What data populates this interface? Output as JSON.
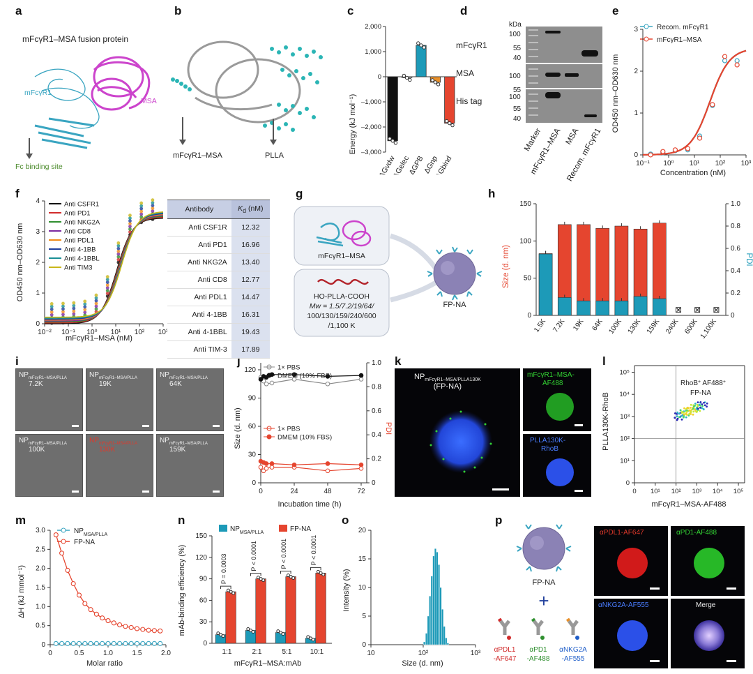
{
  "panel_labels": {
    "a": "a",
    "b": "b",
    "c": "c",
    "d": "d",
    "e": "e",
    "f": "f",
    "g": "g",
    "h": "h",
    "i": "i",
    "j": "j",
    "k": "k",
    "l": "l",
    "m": "m",
    "n": "n",
    "o": "o",
    "p": "p"
  },
  "a": {
    "title": "mFcγR1–MSA fusion protein",
    "left_label": "mFcγR1",
    "right_label": "MSA",
    "site": "Fc binding site"
  },
  "b": {
    "label1": "mFcγR1–MSA",
    "label2": "PLLA"
  },
  "c": {
    "chart_data": {
      "type": "bar",
      "categories": [
        "ΔGvdw",
        "ΔGelec",
        "ΔGPB",
        "ΔGnp",
        "ΔGbind"
      ],
      "values": [
        -2550,
        -40,
        1250,
        -220,
        -1850
      ],
      "colors": [
        "#111111",
        "#ffffff",
        "#1d9ab8",
        "#e8902a",
        "#e5452f"
      ],
      "ylabel": "Energy (kJ mol⁻¹)",
      "ylim": [
        -3000,
        2000
      ],
      "yticks": [
        2000,
        1000,
        0,
        -1000,
        -2000,
        -3000
      ],
      "ytick_labels": [
        "2,000",
        "1,000",
        "0",
        "–1,000",
        "–2,000",
        "–3,000"
      ]
    }
  },
  "d": {
    "unit": "kDa",
    "rows": [
      "mFcγR1",
      "MSA",
      "His tag"
    ],
    "mw": [
      "100",
      "55",
      "40"
    ],
    "lanes": [
      "Marker",
      "mFcγR1–MSA",
      "MSA",
      "Recom. mFcγR1"
    ]
  },
  "e": {
    "chart_data": {
      "type": "line",
      "series": [
        {
          "name": "Recom. mFcγR1",
          "color": "#3aa5c1",
          "x": [
            0.2,
            0.6,
            1.8,
            5.5,
            16,
            50,
            150,
            450
          ],
          "y": [
            0.02,
            0.05,
            0.1,
            0.12,
            0.45,
            1.18,
            2.25,
            2.25
          ]
        },
        {
          "name": "mFcγR1–MSA",
          "color": "#e5452f",
          "x": [
            0.2,
            0.6,
            1.8,
            5.5,
            16,
            50,
            150,
            450
          ],
          "y": [
            0.0,
            0.08,
            0.12,
            0.15,
            0.4,
            1.2,
            2.35,
            2.15
          ]
        }
      ],
      "xlabel": "Concentration (nM)",
      "ylabel": "OD450 nm–OD630 nm",
      "xlim": [
        0.1,
        1000
      ],
      "ylim": [
        0,
        3
      ],
      "xticks": [
        "10⁻¹",
        "10⁰",
        "10¹",
        "10²",
        "10³"
      ],
      "yticks": [
        0,
        1,
        2,
        3
      ]
    }
  },
  "f": {
    "chart_data": {
      "type": "line",
      "series": [
        {
          "name": "Anti CSFR1",
          "color": "#111111"
        },
        {
          "name": "Anti PD1",
          "color": "#d12b2b"
        },
        {
          "name": "Anti NKG2A",
          "color": "#2f8f2f"
        },
        {
          "name": "Anti CD8",
          "color": "#7b2aa0"
        },
        {
          "name": "Anti PDL1",
          "color": "#f08c1a"
        },
        {
          "name": "Anti 4-1BB",
          "color": "#1f3e9c"
        },
        {
          "name": "Anti 4-1BBL",
          "color": "#1a8f95"
        },
        {
          "name": "Anti TIM3",
          "color": "#c9b71a"
        }
      ],
      "xlabel": "mFcγR1–MSA (nM)",
      "ylabel": "OD450 nm–OD630 nm",
      "xlim": [
        0.01,
        1000
      ],
      "ylim": [
        0,
        4
      ],
      "xticks": [
        "10⁻²",
        "10⁻¹",
        "10⁰",
        "10¹",
        "10²",
        "10³"
      ],
      "yticks": [
        0,
        1,
        2,
        3,
        4
      ],
      "x": [
        0.02,
        0.06,
        0.17,
        0.5,
        1.5,
        4.5,
        13,
        40,
        120,
        360
      ],
      "y": [
        0.02,
        0.03,
        0.05,
        0.1,
        0.3,
        0.9,
        2.0,
        2.9,
        3.3,
        3.4
      ]
    },
    "table": {
      "col1": "Antibody",
      "col2_k": "K",
      "col2_d": "d",
      "col2_unit": " (nM)",
      "rows": [
        {
          "ab": "Anti CSF1R",
          "kd": "12.32"
        },
        {
          "ab": "Anti PD1",
          "kd": "16.96"
        },
        {
          "ab": "Anti NKG2A",
          "kd": "13.40"
        },
        {
          "ab": "Anti CD8",
          "kd": "12.77"
        },
        {
          "ab": "Anti PDL1",
          "kd": "14.47"
        },
        {
          "ab": "Anti 4-1BB",
          "kd": "16.31"
        },
        {
          "ab": "Anti 4-1BBL",
          "kd": "19.43"
        },
        {
          "ab": "Anti TIM-3",
          "kd": "17.89"
        }
      ]
    }
  },
  "g": {
    "protein": "mFcγR1–MSA",
    "polymer": "HO-PLLA-COOH",
    "mw_line1": "Mw = 1.5/7.2/19/64/",
    "mw_line2": "100/130/159/240/600",
    "mw_line3": "/1,100 K",
    "product": "FP-NA"
  },
  "h": {
    "chart_data": {
      "type": "bar",
      "categories": [
        "1.5K",
        "7.2K",
        "19K",
        "64K",
        "100K",
        "130K",
        "159K",
        "240K",
        "600K",
        "1,100K"
      ],
      "size": [
        83,
        122,
        122,
        117,
        120,
        116,
        124,
        null,
        null,
        null
      ],
      "pdi": [
        0.55,
        0.16,
        0.13,
        0.13,
        0.13,
        0.17,
        0.15,
        null,
        null,
        null
      ],
      "ylabel_left": "Size (d. nm)",
      "ylabel_right": "PDI",
      "ylim_left": [
        0,
        150
      ],
      "ylim_right": [
        0,
        1.0
      ],
      "yticks_left": [
        0,
        50,
        100,
        150
      ],
      "yticks_right": [
        "0",
        "0.2",
        "0.4",
        "0.6",
        "0.8",
        "1.0"
      ],
      "size_color": "#e5452f",
      "pdi_color": "#1d9ab8",
      "missing_mark": "⊠"
    }
  },
  "i": {
    "tiles": [
      {
        "main": "NP",
        "sub": "mFcγR1–MSA/PLLA",
        "val": "7.2K"
      },
      {
        "main": "NP",
        "sub": "mFcγR1–MSA/PLLA",
        "val": "19K"
      },
      {
        "main": "NP",
        "sub": "mFcγR1–MSA/PLLA",
        "val": "64K"
      },
      {
        "main": "NP",
        "sub": "mFcγR1–MSA/PLLA",
        "val": "100K"
      },
      {
        "main": "NP",
        "sub": "mFcγR1–MSA/PLLA",
        "val": "130K"
      },
      {
        "main": "NP",
        "sub": "mFcγR1–MSA/PLLA",
        "val": "159K"
      }
    ]
  },
  "j": {
    "chart_data": {
      "type": "line",
      "x": [
        0,
        2,
        4,
        8,
        24,
        48,
        72
      ],
      "series": [
        {
          "name": "1× PBS",
          "axis": "size",
          "color": "#888888",
          "filled": false,
          "values": [
            112,
            108,
            105,
            106,
            110,
            105,
            110
          ]
        },
        {
          "name": "DMEM (10% FBS)",
          "axis": "size",
          "color": "#111111",
          "filled": true,
          "values": [
            110,
            113,
            112,
            115,
            115,
            113,
            114
          ]
        },
        {
          "name": "1× PBS",
          "axis": "pdi",
          "color": "#e5452f",
          "filled": false,
          "values": [
            0.13,
            0.1,
            0.12,
            0.13,
            0.13,
            0.1,
            0.12
          ]
        },
        {
          "name": "DMEM (10% FBS)",
          "axis": "pdi",
          "color": "#e5452f",
          "filled": true,
          "values": [
            0.18,
            0.17,
            0.16,
            0.16,
            0.15,
            0.16,
            0.15
          ]
        }
      ],
      "xlabel": "Incubation time (h)",
      "ylabel_left": "Size (d. nm)",
      "ylabel_right": "PDI",
      "xticks": [
        0,
        24,
        48,
        72
      ],
      "yticks_left": [
        0,
        30,
        60,
        90,
        120
      ],
      "yticks_right": [
        "0",
        "0.2",
        "0.4",
        "0.6",
        "0.8",
        "1.0"
      ]
    }
  },
  "k": {
    "main": "NP",
    "sub": "mFcγR1–MSA/PLLA130K",
    "paren": "(FP-NA)",
    "tile1a": "mFcγR1–MSA-",
    "tile1b": "AF488",
    "tile2a": "PLLA130K-",
    "tile2b": "RhoB"
  },
  "l": {
    "xlabel": "mFcγR1–MSA-AF488",
    "ylabel": "PLLA130K-RhoB",
    "gate1": "RhoB",
    "gate2": " AF488",
    "gate3": "FP-NA",
    "sup": "+",
    "xticks": [
      "0",
      "10¹",
      "10²",
      "10³",
      "10⁴",
      "10⁵"
    ],
    "yticks": [
      "0",
      "10¹",
      "10²",
      "10³",
      "10⁴",
      "10⁵"
    ]
  },
  "m": {
    "chart_data": {
      "type": "line",
      "xlabel": "Molar ratio",
      "ylabel": "ΔH (kJ mmol⁻¹)",
      "xlim": [
        0,
        2
      ],
      "ylim": [
        0,
        3
      ],
      "xticks": [
        "0",
        "0.5",
        "1.0",
        "1.5",
        "2.0"
      ],
      "yticks": [
        "0",
        "0.5",
        "1.0",
        "1.5",
        "2.0",
        "2.5",
        "3.0"
      ],
      "series": [
        {
          "name_main": "NP",
          "name_sub": "MSA/PLLA",
          "color": "#3aa5c1",
          "x": [
            0.1,
            0.2,
            0.3,
            0.4,
            0.5,
            0.6,
            0.7,
            0.8,
            0.9,
            1.0,
            1.1,
            1.2,
            1.3,
            1.4,
            1.5,
            1.6,
            1.7,
            1.8,
            1.9
          ],
          "y": [
            0.03,
            0.03,
            0.03,
            0.03,
            0.03,
            0.03,
            0.03,
            0.03,
            0.03,
            0.03,
            0.03,
            0.03,
            0.03,
            0.03,
            0.03,
            0.03,
            0.03,
            0.03,
            0.03
          ]
        },
        {
          "name_main": "FP-NA",
          "name_sub": "",
          "color": "#e5452f",
          "x": [
            0.1,
            0.2,
            0.3,
            0.4,
            0.5,
            0.6,
            0.7,
            0.8,
            0.9,
            1.0,
            1.1,
            1.2,
            1.3,
            1.4,
            1.5,
            1.6,
            1.7,
            1.8,
            1.9
          ],
          "y": [
            2.88,
            2.4,
            1.95,
            1.6,
            1.3,
            1.08,
            0.92,
            0.8,
            0.7,
            0.63,
            0.57,
            0.52,
            0.48,
            0.45,
            0.42,
            0.4,
            0.38,
            0.37,
            0.36
          ]
        }
      ]
    }
  },
  "n": {
    "chart_data": {
      "type": "bar",
      "categories": [
        "1:1",
        "2:1",
        "5:1",
        "10:1"
      ],
      "series": [
        {
          "name_main": "NP",
          "name_sub": "MSA/PLLA",
          "color": "#1d9ab8",
          "values": [
            12,
            18,
            15,
            7
          ]
        },
        {
          "name_main": "FP-NA",
          "name_sub": "",
          "color": "#e5452f",
          "values": [
            72,
            90,
            93,
            98
          ]
        }
      ],
      "pvalues": [
        "P = 0.0003",
        "P < 0.0001",
        "P < 0.0001",
        "P < 0.0001"
      ],
      "xlabel": "mFcγR1–MSA:mAb",
      "ylabel": "mAb-binding efficiency (%)",
      "ylim": [
        0,
        150
      ],
      "yticks": [
        0,
        30,
        60,
        90,
        120,
        150
      ]
    }
  },
  "o": {
    "chart_data": {
      "type": "bar",
      "xlabel": "Size (d. nm)",
      "ylabel": "Intensity (%)",
      "xlim": [
        10,
        1000
      ],
      "ylim": [
        0,
        20
      ],
      "xticks": [
        "10",
        "10²",
        "10³"
      ],
      "yticks": [
        0,
        5,
        10,
        15,
        20
      ],
      "x": [
        105,
        115,
        125,
        135,
        146,
        158,
        171,
        185,
        200,
        216,
        234,
        253,
        274,
        296
      ],
      "values": [
        0.5,
        2,
        5,
        8.5,
        12,
        15.5,
        16.8,
        16.2,
        14,
        10,
        6.2,
        3.2,
        1.2,
        0.3
      ],
      "color": "#1d9ab8"
    }
  },
  "p": {
    "fpna": "FP-NA",
    "plus": "+",
    "ab1a": "αPDL1",
    "ab1b": "-AF647",
    "ab2a": "αPD1",
    "ab2b": "-AF488",
    "ab3a": "αNKG2A",
    "ab3b": "-AF555",
    "tile1": "αPDL1-AF647",
    "tile2": "αPD1-AF488",
    "tile3": "αNKG2A-AF555",
    "tile4": "Merge"
  }
}
